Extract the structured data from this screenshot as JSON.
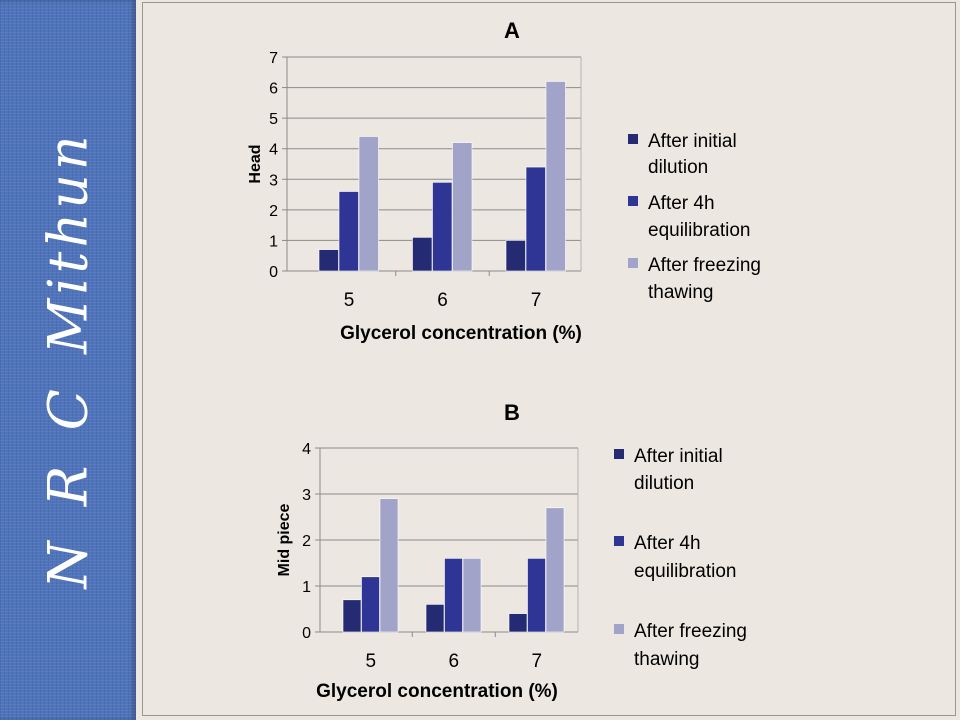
{
  "sidebar": {
    "text": "N  R  C  Mithun"
  },
  "colors": {
    "sidebar": "#4f74bb",
    "series": [
      "#252b73",
      "#2e3594",
      "#a1a3c8"
    ]
  },
  "chart_data": [
    {
      "type": "bar",
      "title": "A",
      "categories": [
        "5",
        "6",
        "7"
      ],
      "series": [
        {
          "name": "After initial dilution",
          "values": [
            0.7,
            1.1,
            1.0
          ]
        },
        {
          "name": "After 4h equilibration",
          "values": [
            2.6,
            2.9,
            3.4
          ]
        },
        {
          "name": "After freezing thawing",
          "values": [
            4.4,
            4.2,
            6.2
          ]
        }
      ],
      "xlabel": "Glycerol concentration (%)",
      "ylabel": "Head",
      "ylim": [
        0,
        7
      ],
      "yticks": [
        "0",
        "1",
        "2",
        "3",
        "4",
        "5",
        "6",
        "7"
      ],
      "grid": true,
      "legend": "right"
    },
    {
      "type": "bar",
      "title": "B",
      "categories": [
        "5",
        "6",
        "7"
      ],
      "series": [
        {
          "name": "After initial dilution",
          "values": [
            0.7,
            0.6,
            0.4
          ]
        },
        {
          "name": "After 4h equilibration",
          "values": [
            1.2,
            1.6,
            1.6
          ]
        },
        {
          "name": "After freezing thawing",
          "values": [
            2.9,
            1.6,
            2.7
          ]
        }
      ],
      "xlabel": "Glycerol concentration (%)",
      "ylabel": "Mid piece",
      "ylim": [
        0,
        4
      ],
      "yticks": [
        "0",
        "1",
        "2",
        "3",
        "4"
      ],
      "grid": true,
      "legend": "right"
    }
  ]
}
